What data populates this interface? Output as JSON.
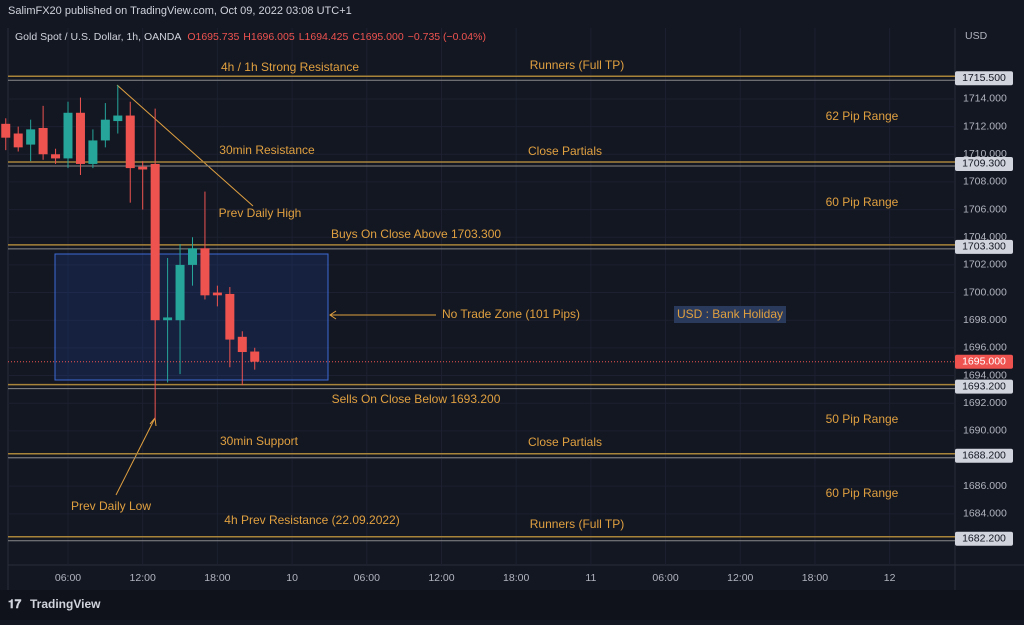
{
  "header": {
    "publisher": "SalimFX20 published on TradingView.com, Oct 09, 2022 03:08 UTC+1",
    "symbol": "Gold Spot / U.S. Dollar, 1h, OANDA",
    "ohlc": [
      "O1695.735",
      "H1696.005",
      "L1694.425",
      "C1695.000"
    ],
    "change": "−0.735 (−0.04%)"
  },
  "chart_data": {
    "type": "candlestick",
    "currency": "USD",
    "x": [
      1,
      2,
      3,
      4,
      5,
      6,
      7,
      8,
      9,
      10,
      11,
      12,
      13,
      14,
      15,
      16,
      17,
      18,
      19,
      20,
      21
    ],
    "open": [
      1712.2,
      1711.5,
      1710.7,
      1711.9,
      1710.0,
      1709.7,
      1713.0,
      1709.3,
      1711.0,
      1712.4,
      1712.8,
      1709.1,
      1709.3,
      1698.0,
      1698.0,
      1702.0,
      1703.2,
      1700.0,
      1699.9,
      1696.8,
      1695.735
    ],
    "high": [
      1712.6,
      1712.0,
      1712.5,
      1713.5,
      1710.4,
      1713.8,
      1714.1,
      1711.8,
      1713.7,
      1715.0,
      1713.8,
      1709.5,
      1713.3,
      1702.5,
      1703.5,
      1704.0,
      1707.3,
      1700.5,
      1700.4,
      1697.2,
      1696.005
    ],
    "low": [
      1710.3,
      1710.2,
      1709.5,
      1709.6,
      1709.3,
      1709.0,
      1708.5,
      1709.0,
      1710.5,
      1711.5,
      1706.5,
      1706.0,
      1690.8,
      1693.5,
      1694.1,
      1700.5,
      1699.5,
      1699.0,
      1694.6,
      1693.3,
      1694.425
    ],
    "close": [
      1711.2,
      1710.5,
      1711.8,
      1710.0,
      1709.7,
      1713.0,
      1709.3,
      1711.0,
      1712.5,
      1712.8,
      1709.0,
      1708.9,
      1698.0,
      1698.2,
      1702.0,
      1703.2,
      1699.8,
      1699.8,
      1696.6,
      1695.7,
      1695.0
    ],
    "up_color": "#26a69a",
    "down_color": "#ef5350",
    "xlim": [
      1.18,
      77.25
    ],
    "xticks": [
      {
        "value": 6,
        "label": "06:00"
      },
      {
        "value": 12,
        "label": "12:00"
      },
      {
        "value": 18,
        "label": "18:00"
      },
      {
        "value": 24,
        "label": "10"
      },
      {
        "value": 30,
        "label": "06:00"
      },
      {
        "value": 36,
        "label": "12:00"
      },
      {
        "value": 42,
        "label": "18:00"
      },
      {
        "value": 48,
        "label": "11"
      },
      {
        "value": 54,
        "label": "06:00"
      },
      {
        "value": 60,
        "label": "12:00"
      },
      {
        "value": 66,
        "label": "18:00"
      },
      {
        "value": 72,
        "label": "12"
      }
    ],
    "ylim": [
      1680.3,
      1719.13
    ],
    "yticks": [
      {
        "value": 1684,
        "label": "1684.000"
      },
      {
        "value": 1686,
        "label": "1686.000"
      },
      {
        "value": 1688,
        "label": "1688.000"
      },
      {
        "value": 1690,
        "label": "1690.000"
      },
      {
        "value": 1692,
        "label": "1692.000"
      },
      {
        "value": 1694,
        "label": "1694.000"
      },
      {
        "value": 1696,
        "label": "1696.000"
      },
      {
        "value": 1698,
        "label": "1698.000"
      },
      {
        "value": 1700,
        "label": "1700.000"
      },
      {
        "value": 1702,
        "label": "1702.000"
      },
      {
        "value": 1704,
        "label": "1704.000"
      },
      {
        "value": 1706,
        "label": "1706.000"
      },
      {
        "value": 1708,
        "label": "1708.000"
      },
      {
        "value": 1710,
        "label": "1710.000"
      },
      {
        "value": 1712,
        "label": "1712.000"
      },
      {
        "value": 1714,
        "label": "1714.000"
      }
    ],
    "levels": [
      {
        "value": 1715.5,
        "label": "1715.500"
      },
      {
        "value": 1709.3,
        "label": "1709.300"
      },
      {
        "value": 1703.3,
        "label": "1703.300"
      },
      {
        "value": 1693.2,
        "label": "1693.200"
      },
      {
        "value": 1688.2,
        "label": "1688.200"
      },
      {
        "value": 1682.2,
        "label": "1682.200"
      }
    ],
    "level_color": "#a8843a",
    "last_price": {
      "value": 1695.0,
      "label": "1695.000"
    },
    "annotations": [
      "4h / 1h Strong Resistance",
      "Runners (Full TP)",
      "62 Pip Range",
      "30min Resistance",
      "Close Partials",
      "Prev Daily High",
      "60 Pip Range",
      "Buys On Close Above 1703.300",
      "No Trade Zone (101 Pips)",
      "USD : Bank Holiday",
      "Sells On Close Below 1693.200",
      "50 Pip Range",
      "30min Support",
      "Close Partials",
      "60 Pip Range",
      "Prev Daily Low",
      "4h Prev Resistance (22.09.2022)",
      "Runners (Full TP)"
    ]
  },
  "footer": "TradingView"
}
